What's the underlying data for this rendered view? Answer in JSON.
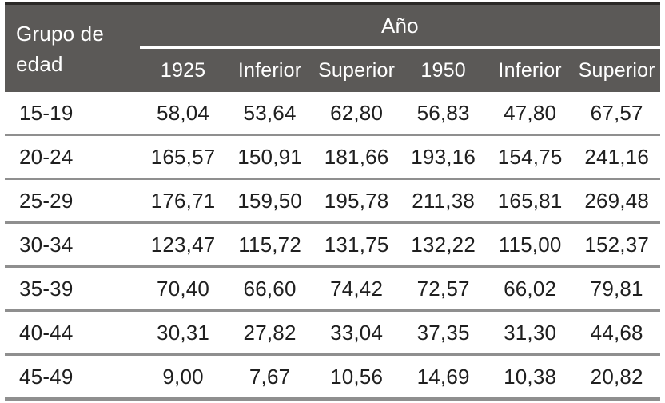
{
  "colors": {
    "header_bg": "#5b5957",
    "header_text": "#ffffff",
    "body_text": "#1f1f1f",
    "row_divider": "#8f8f8f",
    "top_border": "#2b2927",
    "ano_underline": "#ffffff"
  },
  "chart_data": {
    "type": "table",
    "corner_header": "Grupo de edad",
    "group_header": "Año",
    "columns": [
      "1925",
      "Inferior",
      "Superior",
      "1950",
      "Inferior",
      "Superior"
    ],
    "rows": [
      {
        "label": "15-19",
        "values": [
          "58,04",
          "53,64",
          "62,80",
          "56,83",
          "47,80",
          "67,57"
        ]
      },
      {
        "label": "20-24",
        "values": [
          "165,57",
          "150,91",
          "181,66",
          "193,16",
          "154,75",
          "241,16"
        ]
      },
      {
        "label": "25-29",
        "values": [
          "176,71",
          "159,50",
          "195,78",
          "211,38",
          "165,81",
          "269,48"
        ]
      },
      {
        "label": "30-34",
        "values": [
          "123,47",
          "115,72",
          "131,75",
          "132,22",
          "115,00",
          "152,37"
        ]
      },
      {
        "label": "35-39",
        "values": [
          "70,40",
          "66,60",
          "74,42",
          "72,57",
          "66,02",
          "79,81"
        ]
      },
      {
        "label": "40-44",
        "values": [
          "30,31",
          "27,82",
          "33,04",
          "37,35",
          "31,30",
          "44,68"
        ]
      },
      {
        "label": "45-49",
        "values": [
          "9,00",
          "7,67",
          "10,56",
          "14,69",
          "10,38",
          "20,82"
        ]
      }
    ]
  }
}
